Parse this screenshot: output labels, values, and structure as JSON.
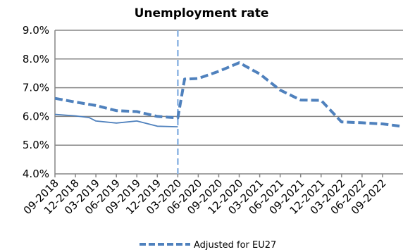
{
  "chart_data": {
    "type": "line",
    "title": "Unemployment rate",
    "xlabel": "",
    "ylabel": "",
    "ylim": [
      4.0,
      9.0
    ],
    "yticks": [
      "4.0%",
      "5.0%",
      "6.0%",
      "7.0%",
      "8.0%",
      "9.0%"
    ],
    "ytick_values": [
      4.0,
      5.0,
      6.0,
      7.0,
      8.0,
      9.0
    ],
    "x_range": [
      "09-2018",
      "12-2022"
    ],
    "xticks": [
      "09-2018",
      "12-2018",
      "03-2019",
      "06-2019",
      "09-2019",
      "12-2019",
      "03-2020",
      "06-2020",
      "09-2020",
      "12-2020",
      "03-2021",
      "06-2021",
      "09-2021",
      "12-2021",
      "03-2022",
      "06-2022",
      "09-2022"
    ],
    "grid": true,
    "legend_position": "bottom-right",
    "vertical_marker": {
      "x": "03-2020",
      "color": "#8EB4E3",
      "style": "dashed"
    },
    "series": [
      {
        "color": "#4F81BD",
        "style": "solid",
        "points": [
          [
            "09-2018",
            6.07
          ],
          [
            "12-2018",
            6.02
          ],
          [
            "02-2019",
            5.96
          ],
          [
            "03-2019",
            5.84
          ],
          [
            "06-2019",
            5.77
          ],
          [
            "09-2019",
            5.84
          ],
          [
            "12-2019",
            5.66
          ],
          [
            "03-2020",
            5.64
          ]
        ]
      },
      {
        "name": "Adjusted for EU27",
        "color": "#4F81BD",
        "style": "dashed",
        "points": [
          [
            "09-2018",
            6.63
          ],
          [
            "12-2018",
            6.5
          ],
          [
            "03-2019",
            6.38
          ],
          [
            "06-2019",
            6.2
          ],
          [
            "09-2019",
            6.17
          ],
          [
            "12-2019",
            6.0
          ],
          [
            "03-2020",
            5.95
          ],
          [
            "04-2020",
            7.3
          ],
          [
            "06-2020",
            7.32
          ],
          [
            "09-2020",
            7.57
          ],
          [
            "12-2020",
            7.87
          ],
          [
            "03-2021",
            7.48
          ],
          [
            "06-2021",
            6.92
          ],
          [
            "09-2021",
            6.57
          ],
          [
            "12-2021",
            6.56
          ],
          [
            "03-2022",
            5.81
          ],
          [
            "06-2022",
            5.78
          ],
          [
            "09-2022",
            5.74
          ],
          [
            "12-2022",
            5.65
          ]
        ]
      }
    ]
  }
}
